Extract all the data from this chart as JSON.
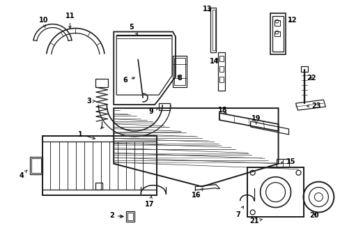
{
  "background_color": "#ffffff",
  "figsize": [
    4.89,
    3.6
  ],
  "dpi": 100,
  "line_color": "#1a1a1a",
  "label_fontsize": 7.0,
  "label_color": "#000000"
}
